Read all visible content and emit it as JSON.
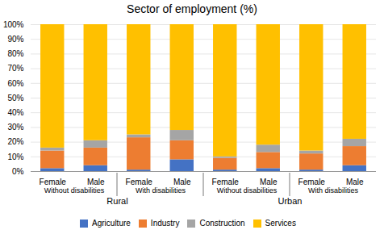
{
  "chart_data": {
    "type": "bar",
    "title": "Sector of employment (%)",
    "stacked": true,
    "categories": [
      "Female",
      "Male",
      "Female",
      "Male",
      "Female",
      "Male",
      "Female",
      "Male"
    ],
    "group_labels": [
      "Without disabilities",
      "With disabilities",
      "Without disabilities",
      "With disabilities"
    ],
    "region_labels": [
      "Rural",
      "Urban"
    ],
    "series": [
      {
        "name": "Agriculture",
        "color": "#4472C4",
        "values": [
          2,
          4,
          1,
          8,
          1,
          2,
          1,
          4
        ]
      },
      {
        "name": "Industry",
        "color": "#ED7D31",
        "values": [
          12,
          12,
          22,
          13,
          8,
          11,
          11,
          13
        ]
      },
      {
        "name": "Construction",
        "color": "#A5A5A5",
        "values": [
          2,
          5,
          2,
          7,
          1,
          5,
          2,
          5
        ]
      },
      {
        "name": "Services",
        "color": "#FFC000",
        "values": [
          84,
          79,
          75,
          72,
          90,
          82,
          86,
          78
        ]
      }
    ],
    "ylim": [
      0,
      100
    ],
    "yticks": [
      {
        "value": 0,
        "label": "0%"
      },
      {
        "value": 10,
        "label": "10%"
      },
      {
        "value": 20,
        "label": "20%"
      },
      {
        "value": 30,
        "label": "30%"
      },
      {
        "value": 40,
        "label": "40%"
      },
      {
        "value": 50,
        "label": "50%"
      },
      {
        "value": 60,
        "label": "60%"
      },
      {
        "value": 70,
        "label": "70%"
      },
      {
        "value": 80,
        "label": "80%"
      },
      {
        "value": 90,
        "label": "90%"
      },
      {
        "value": 100,
        "label": "100%"
      }
    ],
    "grid": true,
    "legend": "bottom"
  }
}
